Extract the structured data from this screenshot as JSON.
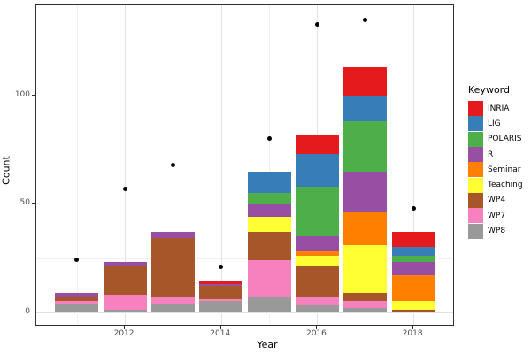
{
  "chart_data": {
    "type": "bar",
    "stacked": true,
    "title": "",
    "xlabel": "Year",
    "ylabel": "Count",
    "legend_title": "Keyword",
    "legend_position": "right",
    "grid": true,
    "x": [
      2011,
      2012,
      2013,
      2014,
      2015,
      2016,
      2017,
      2018
    ],
    "x_major_ticks": [
      2012,
      2014,
      2016,
      2018
    ],
    "x_minor_gridlines": [
      2011,
      2013,
      2015,
      2017
    ],
    "y_major_ticks": [
      0,
      50,
      100
    ],
    "y_minor_gridlines": [
      25,
      75,
      125
    ],
    "ylim": [
      0,
      142
    ],
    "bar_width_fraction": 0.9,
    "stack_order_bottom_to_top": [
      "WP8",
      "WP7",
      "WP4",
      "Teaching",
      "Seminar",
      "R",
      "POLARIS",
      "LIG",
      "INRIA"
    ],
    "series": [
      {
        "name": "INRIA",
        "color": "#E41A1C",
        "values": [
          0,
          0,
          0,
          1,
          0,
          9,
          13,
          7
        ]
      },
      {
        "name": "LIG",
        "color": "#377EB8",
        "values": [
          0,
          0,
          0,
          0,
          10,
          15,
          12,
          4
        ]
      },
      {
        "name": "POLARIS",
        "color": "#4DAF4A",
        "values": [
          0,
          0,
          0,
          0,
          5,
          23,
          23,
          3
        ]
      },
      {
        "name": "R",
        "color": "#984EA3",
        "values": [
          2,
          2,
          3,
          1,
          6,
          7,
          19,
          6
        ]
      },
      {
        "name": "Seminar",
        "color": "#FF7F00",
        "values": [
          0,
          0,
          0,
          0,
          0,
          2,
          15,
          12
        ]
      },
      {
        "name": "Teaching",
        "color": "#FFFF33",
        "values": [
          0,
          0,
          0,
          0,
          7,
          5,
          22,
          4
        ]
      },
      {
        "name": "WP4",
        "color": "#A65628",
        "values": [
          2,
          13,
          27,
          6,
          13,
          14,
          4,
          1
        ]
      },
      {
        "name": "WP7",
        "color": "#F781BF",
        "values": [
          1,
          7,
          3,
          1,
          17,
          4,
          3,
          0
        ]
      },
      {
        "name": "WP8",
        "color": "#999999",
        "values": [
          4,
          1,
          4,
          5,
          7,
          3,
          2,
          0
        ]
      }
    ],
    "bar_totals": [
      9,
      23,
      37,
      14,
      65,
      82,
      113,
      37
    ],
    "points": {
      "name": "total-dots",
      "color": "#000000",
      "values": [
        24,
        57,
        68,
        21,
        80,
        133,
        135,
        48
      ]
    }
  }
}
